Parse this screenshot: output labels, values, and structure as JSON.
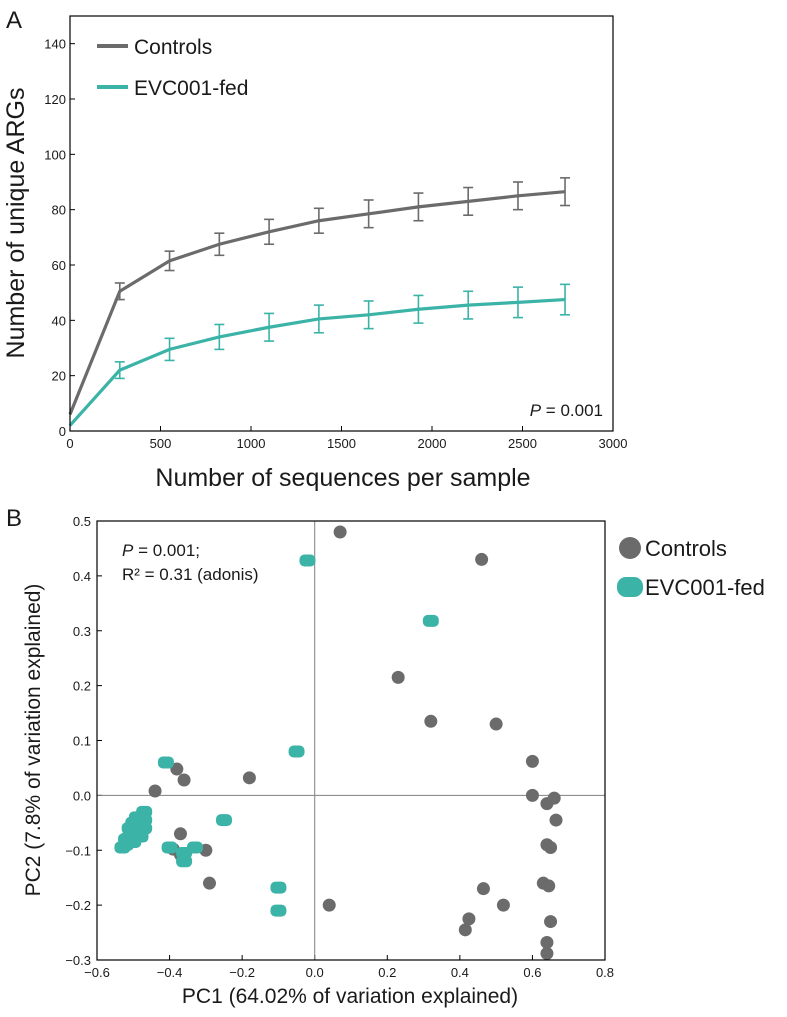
{
  "colors": {
    "controls": "#6b6b6b",
    "evc": "#3bb3a6",
    "axis": "#000000",
    "zero": "#808080"
  },
  "chart_data": [
    {
      "type": "line",
      "panel": "A",
      "xlabel": "Number of sequences per sample",
      "ylabel": "Number of unique ARGs",
      "xlim": [
        0,
        3000
      ],
      "ylim": [
        0,
        150
      ],
      "xticks": [
        0,
        500,
        1000,
        1500,
        2000,
        2500,
        3000
      ],
      "yticks": [
        0,
        20,
        40,
        60,
        80,
        100,
        120,
        140
      ],
      "legend_position": "top-left",
      "annotation_prefix": "P",
      "annotation_value": "= 0.001",
      "series": [
        {
          "name": "Controls",
          "color_key": "controls",
          "x": [
            0,
            275,
            550,
            825,
            1100,
            1375,
            1650,
            1925,
            2200,
            2475,
            2735
          ],
          "y": [
            6,
            50.5,
            61.5,
            67.5,
            72,
            76,
            78.5,
            81,
            83,
            85,
            86.5
          ],
          "err": [
            1.5,
            3,
            3.5,
            4,
            4.5,
            4.5,
            5,
            5,
            5,
            5,
            5
          ]
        },
        {
          "name": "EVC001-fed",
          "color_key": "evc",
          "x": [
            0,
            275,
            550,
            825,
            1100,
            1375,
            1650,
            1925,
            2200,
            2475,
            2735
          ],
          "y": [
            2,
            22,
            29.5,
            34,
            37.5,
            40.5,
            42,
            44,
            45.5,
            46.5,
            47.5
          ],
          "err": [
            0.8,
            3,
            4,
            4.5,
            5,
            5,
            5,
            5,
            5,
            5.5,
            5.5
          ]
        }
      ]
    },
    {
      "type": "scatter",
      "panel": "B",
      "xlabel": "PC1 (64.02% of variation explained)",
      "ylabel": "PC2 (7.8% of variation explained)",
      "xlim": [
        -0.6,
        0.8
      ],
      "ylim": [
        -0.3,
        0.5
      ],
      "xticks": [
        -0.6,
        -0.4,
        -0.2,
        0.0,
        0.2,
        0.4,
        0.6,
        0.8
      ],
      "xtick_labels": [
        "−0.6",
        "−0.4",
        "−0.2",
        "0.0",
        "0.2",
        "0.4",
        "0.6",
        "0.8"
      ],
      "yticks": [
        -0.3,
        -0.2,
        -0.1,
        0.0,
        0.1,
        0.2,
        0.3,
        0.4,
        0.5
      ],
      "ytick_labels": [
        "−0.3",
        "−0.2",
        "−0.1",
        "0.0",
        "0.1",
        "0.2",
        "0.3",
        "0.4",
        "0.5"
      ],
      "legend_position": "right",
      "annotation_line1_prefix": "P",
      "annotation_line1_value": "= 0.001;",
      "annotation_line2": "R² = 0.31 (adonis)",
      "series": [
        {
          "name": "Controls",
          "color_key": "controls",
          "points": [
            [
              0.07,
              0.48
            ],
            [
              0.46,
              0.43
            ],
            [
              0.23,
              0.215
            ],
            [
              0.32,
              0.135
            ],
            [
              0.5,
              0.13
            ],
            [
              0.6,
              0.062
            ],
            [
              0.6,
              0.0
            ],
            [
              0.64,
              -0.015
            ],
            [
              0.66,
              -0.005
            ],
            [
              0.665,
              -0.045
            ],
            [
              0.64,
              -0.09
            ],
            [
              0.65,
              -0.095
            ],
            [
              0.63,
              -0.16
            ],
            [
              0.645,
              -0.165
            ],
            [
              0.465,
              -0.17
            ],
            [
              0.52,
              -0.2
            ],
            [
              0.425,
              -0.225
            ],
            [
              0.415,
              -0.245
            ],
            [
              0.65,
              -0.23
            ],
            [
              0.64,
              -0.268
            ],
            [
              0.64,
              -0.288
            ],
            [
              0.04,
              -0.2
            ],
            [
              -0.18,
              0.032
            ],
            [
              -0.36,
              0.028
            ],
            [
              -0.38,
              0.048
            ],
            [
              -0.44,
              0.008
            ],
            [
              -0.37,
              -0.07
            ],
            [
              -0.39,
              -0.098
            ],
            [
              -0.37,
              -0.108
            ],
            [
              -0.3,
              -0.1
            ],
            [
              -0.29,
              -0.16
            ]
          ]
        },
        {
          "name": "EVC001-fed",
          "color_key": "evc",
          "points": [
            [
              -0.02,
              0.428
            ],
            [
              0.32,
              0.318
            ],
            [
              -0.05,
              0.08
            ],
            [
              -0.41,
              0.06
            ],
            [
              -0.25,
              -0.045
            ],
            [
              -0.1,
              -0.168
            ],
            [
              -0.1,
              -0.21
            ],
            [
              -0.33,
              -0.095
            ],
            [
              -0.36,
              -0.105
            ],
            [
              -0.36,
              -0.12
            ],
            [
              -0.4,
              -0.095
            ],
            [
              -0.47,
              -0.03
            ],
            [
              -0.47,
              -0.045
            ],
            [
              -0.48,
              -0.055
            ],
            [
              -0.47,
              -0.06
            ],
            [
              -0.49,
              -0.04
            ],
            [
              -0.5,
              -0.05
            ],
            [
              -0.5,
              -0.065
            ],
            [
              -0.49,
              -0.07
            ],
            [
              -0.51,
              -0.075
            ],
            [
              -0.5,
              -0.085
            ],
            [
              -0.52,
              -0.09
            ],
            [
              -0.53,
              -0.095
            ],
            [
              -0.51,
              -0.06
            ],
            [
              -0.48,
              -0.075
            ],
            [
              -0.52,
              -0.08
            ]
          ]
        }
      ]
    }
  ]
}
